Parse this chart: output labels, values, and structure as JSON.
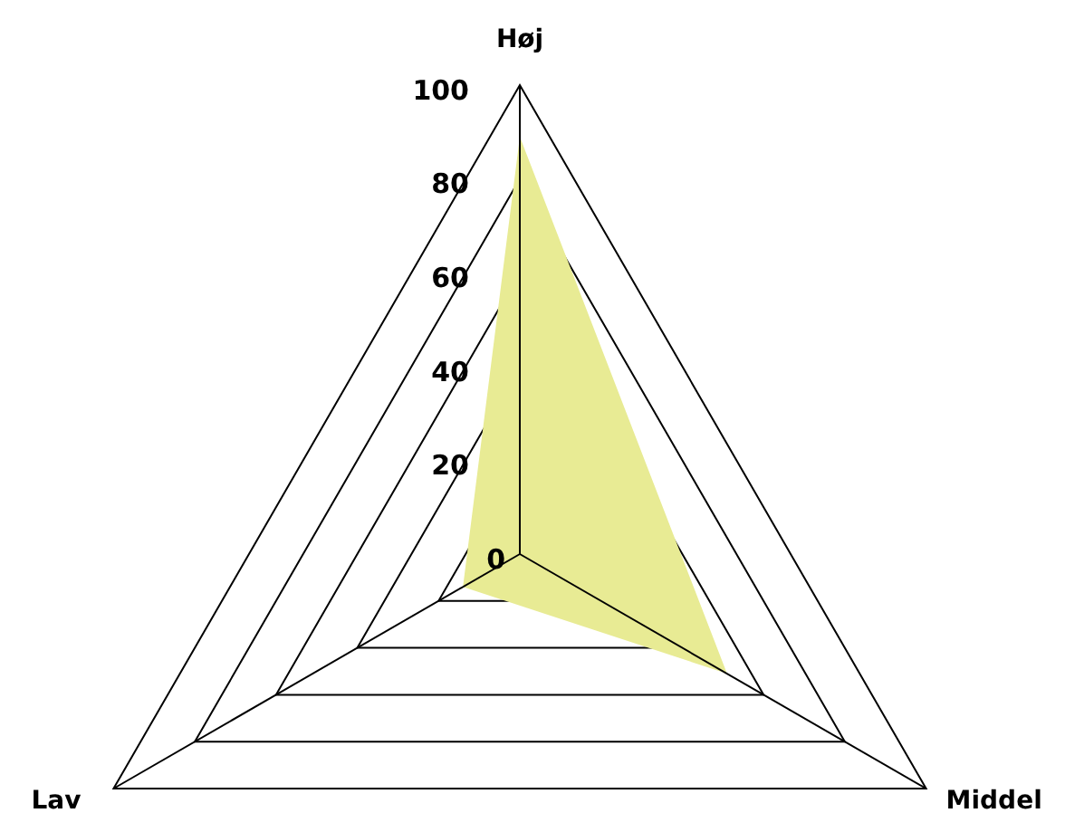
{
  "chart_data": {
    "type": "radar",
    "categories": [
      "Høj",
      "Middel",
      "Lav"
    ],
    "series": [
      {
        "color": "#e8eb94",
        "values": [
          89,
          51,
          14
        ]
      }
    ],
    "ylim": [
      0,
      100
    ],
    "yticks": [
      0,
      20,
      40,
      60,
      80,
      100
    ],
    "grid": true
  }
}
